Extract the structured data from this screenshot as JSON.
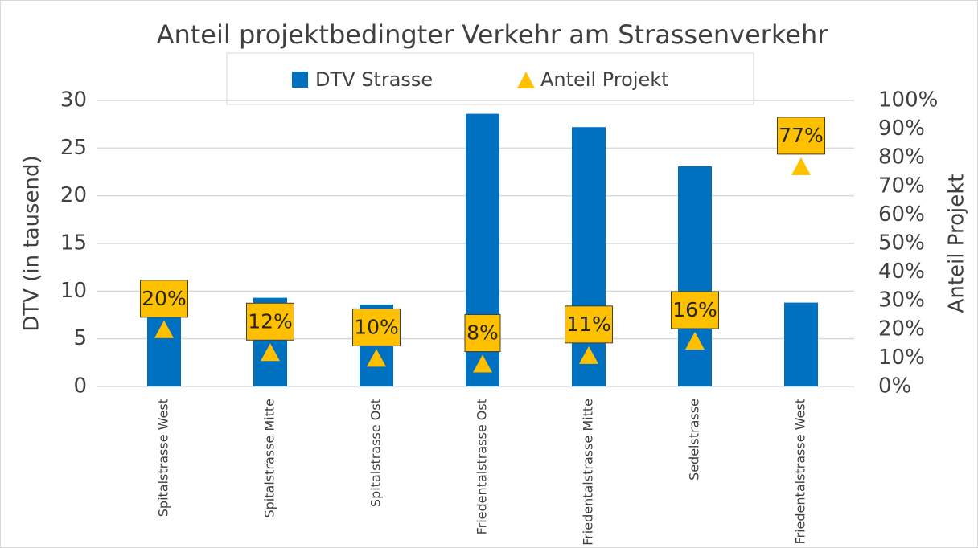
{
  "chart_data": {
    "type": "bar_triangle",
    "title": "Anteil projektbedingter Verkehr am Strassenverkehr",
    "ylabel": "DTV (in tausend)",
    "y2label": "Anteil Projekt",
    "categories": [
      "Spitalstrasse West",
      "Spitalstrasse Mitte",
      "Spitalstrasse Ost",
      "Friedentalstrasse Ost",
      "Friedentalstrasse Mitte",
      "Sedelstrasse",
      "Friedentalstrasse West"
    ],
    "series": [
      {
        "name": "DTV Strasse",
        "color": "#0070c0",
        "values": [
          7.5,
          9.3,
          8.6,
          28.6,
          27.2,
          23.1,
          8.8
        ]
      },
      {
        "name": "Anteil Projekt",
        "color": "#ffc000",
        "axis": "y2",
        "values": [
          20,
          12,
          10,
          8,
          11,
          16,
          77
        ],
        "value_labels": [
          "20%",
          "12%",
          "10%",
          "8%",
          "11%",
          "16%",
          "77%"
        ]
      }
    ],
    "ylim": [
      0,
      30
    ],
    "yticks": [
      0,
      5,
      10,
      15,
      20,
      25,
      30
    ],
    "y2lim": [
      0,
      100
    ],
    "y2ticks": [
      {
        "value": 0,
        "label": "0%"
      },
      {
        "value": 10,
        "label": "10%"
      },
      {
        "value": 20,
        "label": "20%"
      },
      {
        "value": 30,
        "label": "30%"
      },
      {
        "value": 40,
        "label": "40%"
      },
      {
        "value": 50,
        "label": "50%"
      },
      {
        "value": 60,
        "label": "60%"
      },
      {
        "value": 70,
        "label": "70%"
      },
      {
        "value": 80,
        "label": "80%"
      },
      {
        "value": 90,
        "label": "90%"
      },
      {
        "value": 100,
        "label": "100%"
      }
    ],
    "grid": true
  }
}
